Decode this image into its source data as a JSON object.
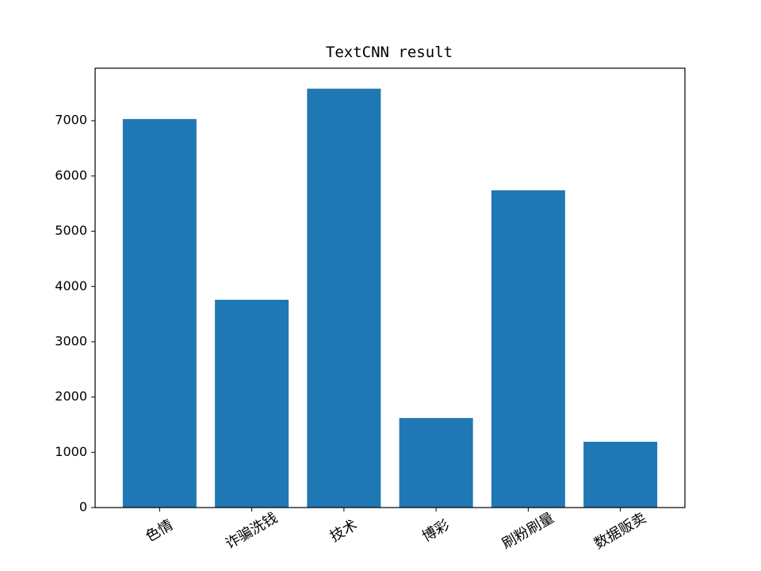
{
  "chart_data": {
    "type": "bar",
    "title": "TextCNN result",
    "xlabel": "",
    "ylabel": "",
    "categories": [
      "色情",
      "诈骗洗钱",
      "技术",
      "博彩",
      "刷粉刷量",
      "数据贩卖"
    ],
    "values": [
      7030,
      3760,
      7580,
      1620,
      5740,
      1190
    ],
    "ylim": [
      0,
      7950
    ],
    "yticks": [
      0,
      1000,
      2000,
      3000,
      4000,
      5000,
      6000,
      7000
    ],
    "bar_color": "#1f77b4",
    "xtick_rotation_deg": -30,
    "grid": false,
    "legend": "none"
  }
}
